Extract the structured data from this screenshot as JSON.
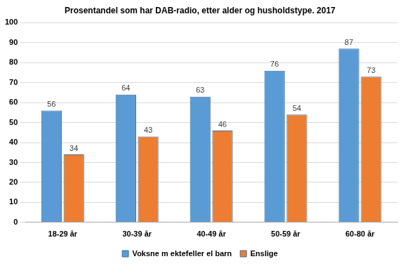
{
  "chart_data": {
    "type": "bar",
    "title": "Prosentandel som har DAB-radio, etter alder og husholdstype. 2017",
    "categories": [
      "18-29 år",
      "30-39 år",
      "40-49 år",
      "50-59 år",
      "60-80 år"
    ],
    "series": [
      {
        "name": "Voksne m ektefeller el barn",
        "color": "#5b9bd5",
        "values": [
          56,
          64,
          63,
          76,
          87
        ]
      },
      {
        "name": "Enslige",
        "color": "#ed7d31",
        "values": [
          34,
          43,
          46,
          54,
          73
        ]
      }
    ],
    "ylim": [
      0,
      100
    ],
    "yticks": [
      0,
      10,
      20,
      30,
      40,
      50,
      60,
      70,
      80,
      90,
      100
    ],
    "grid": true,
    "legend": "bottom",
    "data_labels": true
  }
}
